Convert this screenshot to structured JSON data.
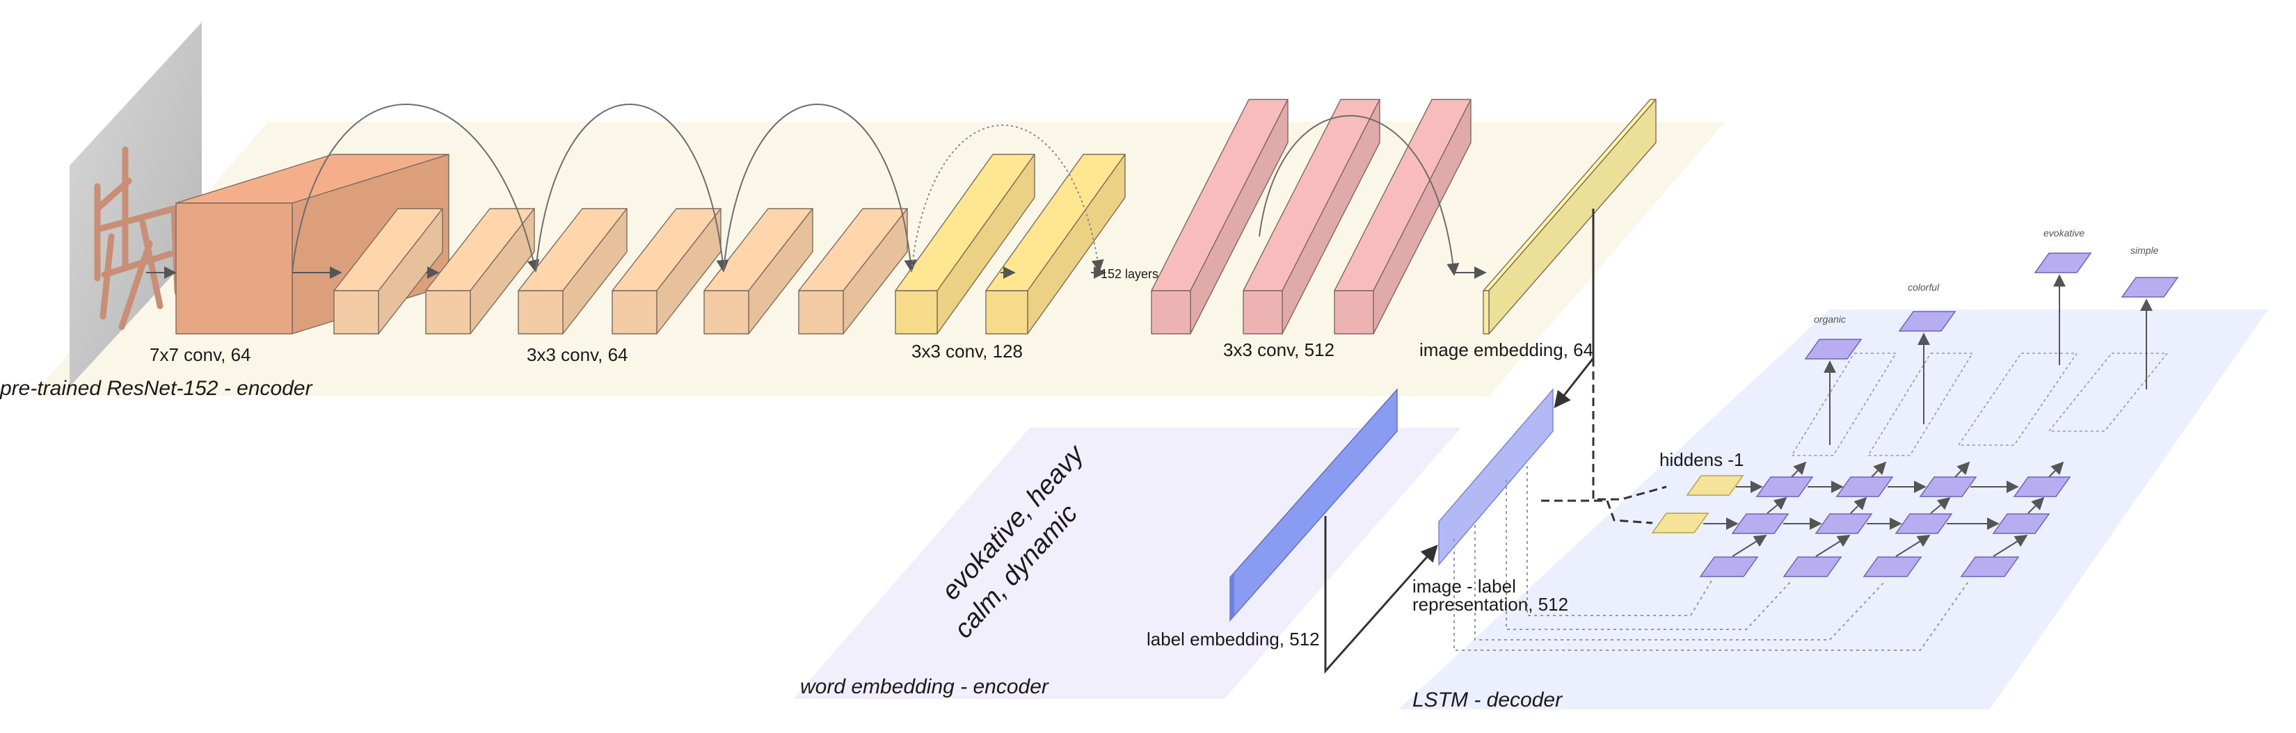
{
  "colors": {
    "encoder_plane": "#fbf7e8",
    "word_plane": "#f2effc",
    "lstm_plane": "#eceffd",
    "conv1": "#e8a783",
    "conv64": "#f3cba4",
    "conv128": "#f6dc8a",
    "conv512": "#edb3b3",
    "img_emb": "#f8eba0",
    "label_emb": "#8a9bf2",
    "rep": "#b2b9f5",
    "lstm_cell": "#b9adf2",
    "hidden": "#f5e39a"
  },
  "encoder": {
    "section_label": "pre-trained ResNet-152 - encoder",
    "input_image_desc": "photo of wooden chair",
    "group_labels": {
      "conv7": "7x7 conv, 64",
      "conv64": "3x3 conv, 64",
      "conv128": "3x3 conv, 128",
      "conv512": "3x3 conv, 512",
      "img_embedding": "image embedding, 64"
    },
    "layers_note": "152 layers"
  },
  "word_encoder": {
    "section_label": "word embedding - encoder",
    "words_line1": "evokative, heavy",
    "words_line2": "calm, dynamic",
    "label_embedding": "label embedding, 512"
  },
  "decoder": {
    "section_label": "LSTM - decoder",
    "rep_line1": "image - label",
    "rep_line2": "representation, 512",
    "hiddens": "hiddens -1",
    "outputs": [
      "organic",
      "colorful",
      "evokative",
      "simple"
    ]
  }
}
